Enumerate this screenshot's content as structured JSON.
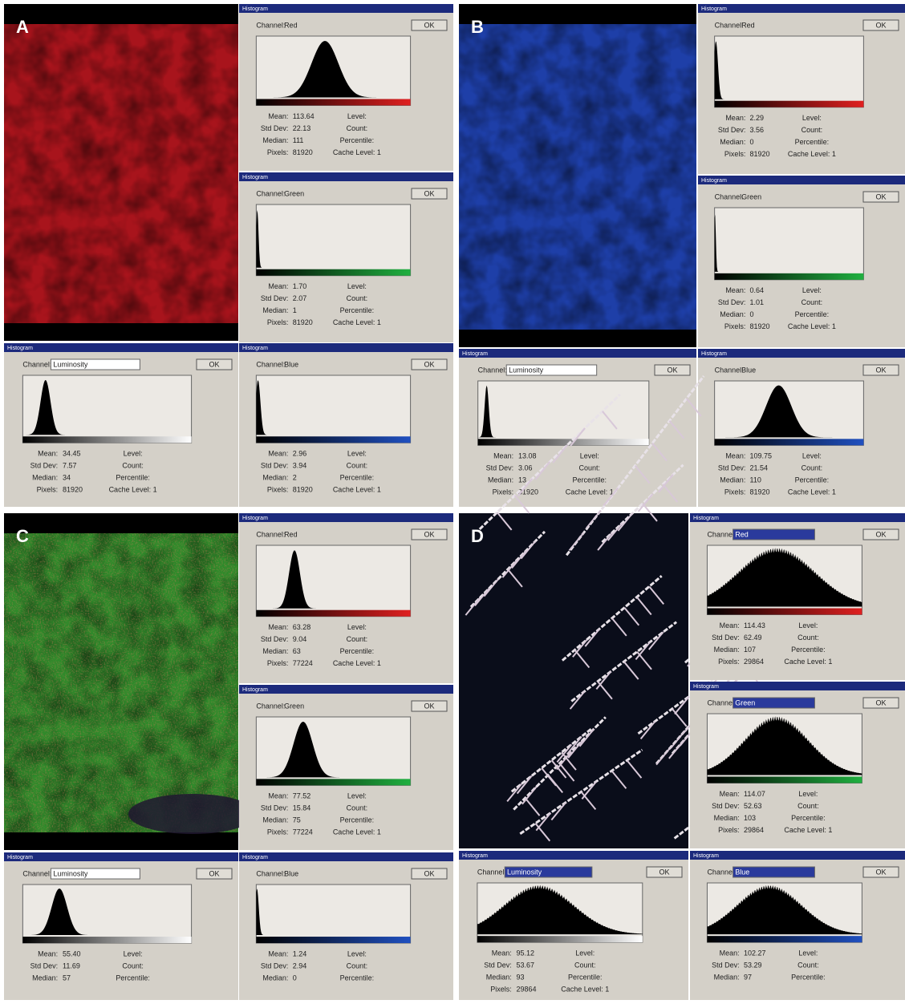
{
  "panels": [
    {
      "label": "A",
      "windows": [
        {
          "title": "Histogram",
          "channel_label": "Channel:",
          "channel": "Red",
          "ok": "OK",
          "color": "#e02020",
          "stats": [
            [
              "Mean:",
              "113.64"
            ],
            [
              "Std Dev:",
              "22.13"
            ],
            [
              "Median:",
              "111"
            ],
            [
              "Pixels:",
              "81920"
            ]
          ],
          "right": [
            "Level:",
            "Count:",
            "Percentile:",
            "Cache Level: 1"
          ]
        },
        {
          "title": "Histogram",
          "channel_label": "Channel:",
          "channel": "Green",
          "ok": "OK",
          "color": "#20b040",
          "stats": [
            [
              "Mean:",
              "1.70"
            ],
            [
              "Std Dev:",
              "2.07"
            ],
            [
              "Median:",
              "1"
            ],
            [
              "Pixels:",
              "81920"
            ]
          ],
          "right": [
            "Level:",
            "Count:",
            "Percentile:",
            "Cache Level: 1"
          ]
        },
        {
          "title": "Histogram",
          "channel_label": "Channel:",
          "channel": "Luminosity",
          "ok": "OK",
          "color": "#ffffff",
          "stats": [
            [
              "Mean:",
              "34.45"
            ],
            [
              "Std Dev:",
              "7.57"
            ],
            [
              "Median:",
              "34"
            ],
            [
              "Pixels:",
              "81920"
            ]
          ],
          "right": [
            "Level:",
            "Count:",
            "Percentile:",
            "Cache Level: 1"
          ]
        },
        {
          "title": "Histogram",
          "channel_label": "Channel:",
          "channel": "Blue",
          "ok": "OK",
          "color": "#2050c0",
          "stats": [
            [
              "Mean:",
              "2.96"
            ],
            [
              "Std Dev:",
              "3.94"
            ],
            [
              "Median:",
              "2"
            ],
            [
              "Pixels:",
              "81920"
            ]
          ],
          "right": [
            "Level:",
            "Count:",
            "Percentile:",
            "Cache Level: 1"
          ]
        }
      ]
    },
    {
      "label": "B",
      "windows": [
        {
          "title": "Histogram",
          "channel_label": "Channel:",
          "channel": "Red",
          "ok": "OK",
          "color": "#e02020",
          "stats": [
            [
              "Mean:",
              "2.29"
            ],
            [
              "Std Dev:",
              "3.56"
            ],
            [
              "Median:",
              "0"
            ],
            [
              "Pixels:",
              "81920"
            ]
          ],
          "right": [
            "Level:",
            "Count:",
            "Percentile:",
            "Cache Level: 1"
          ]
        },
        {
          "title": "Histogram",
          "channel_label": "Channel:",
          "channel": "Green",
          "ok": "OK",
          "color": "#20b040",
          "stats": [
            [
              "Mean:",
              "0.64"
            ],
            [
              "Std Dev:",
              "1.01"
            ],
            [
              "Median:",
              "0"
            ],
            [
              "Pixels:",
              "81920"
            ]
          ],
          "right": [
            "Level:",
            "Count:",
            "Percentile:",
            "Cache Level: 1"
          ]
        },
        {
          "title": "Histogram",
          "channel_label": "Channel:",
          "channel": "Luminosity",
          "ok": "OK",
          "color": "#ffffff",
          "stats": [
            [
              "Mean:",
              "13.08"
            ],
            [
              "Std Dev:",
              "3.06"
            ],
            [
              "Median:",
              "13"
            ],
            [
              "Pixels:",
              "81920"
            ]
          ],
          "right": [
            "Level:",
            "Count:",
            "Percentile:",
            "Cache Level: 1"
          ]
        },
        {
          "title": "Histogram",
          "channel_label": "Channel:",
          "channel": "Blue",
          "ok": "OK",
          "color": "#2050c0",
          "stats": [
            [
              "Mean:",
              "109.75"
            ],
            [
              "Std Dev:",
              "21.54"
            ],
            [
              "Median:",
              "110"
            ],
            [
              "Pixels:",
              "81920"
            ]
          ],
          "right": [
            "Level:",
            "Count:",
            "Percentile:",
            "Cache Level: 1"
          ]
        }
      ]
    },
    {
      "label": "C",
      "windows": [
        {
          "title": "Histogram",
          "channel_label": "Channel:",
          "channel": "Red",
          "ok": "OK",
          "color": "#e02020",
          "stats": [
            [
              "Mean:",
              "63.28"
            ],
            [
              "Std Dev:",
              "9.04"
            ],
            [
              "Median:",
              "63"
            ],
            [
              "Pixels:",
              "77224"
            ]
          ],
          "right": [
            "Level:",
            "Count:",
            "Percentile:",
            "Cache Level: 1"
          ]
        },
        {
          "title": "Histogram",
          "channel_label": "Channel:",
          "channel": "Green",
          "ok": "OK",
          "color": "#20b040",
          "stats": [
            [
              "Mean:",
              "77.52"
            ],
            [
              "Std Dev:",
              "15.84"
            ],
            [
              "Median:",
              "75"
            ],
            [
              "Pixels:",
              "77224"
            ]
          ],
          "right": [
            "Level:",
            "Count:",
            "Percentile:",
            "Cache Level: 1"
          ]
        },
        {
          "title": "Histogram",
          "channel_label": "Channel:",
          "channel": "Luminosity",
          "ok": "OK",
          "color": "#ffffff",
          "stats": [
            [
              "Mean:",
              "55.40"
            ],
            [
              "Std Dev:",
              "11.69"
            ],
            [
              "Median:",
              "57"
            ]
          ],
          "right": [
            "Level:",
            "Count:",
            "Percentile:"
          ]
        },
        {
          "title": "Histogram",
          "channel_label": "Channel:",
          "channel": "Blue",
          "ok": "OK",
          "color": "#2050c0",
          "stats": [
            [
              "Mean:",
              "1.24"
            ],
            [
              "Std Dev:",
              "2.94"
            ],
            [
              "Median:",
              "0"
            ]
          ],
          "right": [
            "Level:",
            "Count:",
            "Percentile:"
          ]
        }
      ]
    },
    {
      "label": "D",
      "windows": [
        {
          "title": "Histogram",
          "channel_label": "Channel:",
          "channel": "Red",
          "ok": "OK",
          "color": "#e02020",
          "stats": [
            [
              "Mean:",
              "114.43"
            ],
            [
              "Std Dev:",
              "62.49"
            ],
            [
              "Median:",
              "107"
            ],
            [
              "Pixels:",
              "29864"
            ]
          ],
          "right": [
            "Level:",
            "Count:",
            "Percentile:",
            "Cache Level: 1"
          ]
        },
        {
          "title": "Histogram",
          "channel_label": "Channel:",
          "channel": "Green",
          "ok": "OK",
          "color": "#20b040",
          "stats": [
            [
              "Mean:",
              "114.07"
            ],
            [
              "Std Dev:",
              "52.63"
            ],
            [
              "Median:",
              "103"
            ],
            [
              "Pixels:",
              "29864"
            ]
          ],
          "right": [
            "Level:",
            "Count:",
            "Percentile:",
            "Cache Level: 1"
          ]
        },
        {
          "title": "Histogram",
          "channel_label": "Channel:",
          "channel": "Luminosity",
          "ok": "OK",
          "color": "#ffffff",
          "stats": [
            [
              "Mean:",
              "95.12"
            ],
            [
              "Std Dev:",
              "53.67"
            ],
            [
              "Median:",
              "93"
            ],
            [
              "Pixels:",
              "29864"
            ]
          ],
          "right": [
            "Level:",
            "Count:",
            "Percentile:",
            "Cache Level: 1"
          ]
        },
        {
          "title": "Histogram",
          "channel_label": "Channel:",
          "channel": "Blue",
          "ok": "OK",
          "color": "#2050c0",
          "stats": [
            [
              "Mean:",
              "102.27"
            ],
            [
              "Std Dev:",
              "53.29"
            ],
            [
              "Median:",
              "97"
            ]
          ],
          "right": [
            "Level:",
            "Count:",
            "Percentile:"
          ]
        }
      ]
    }
  ]
}
